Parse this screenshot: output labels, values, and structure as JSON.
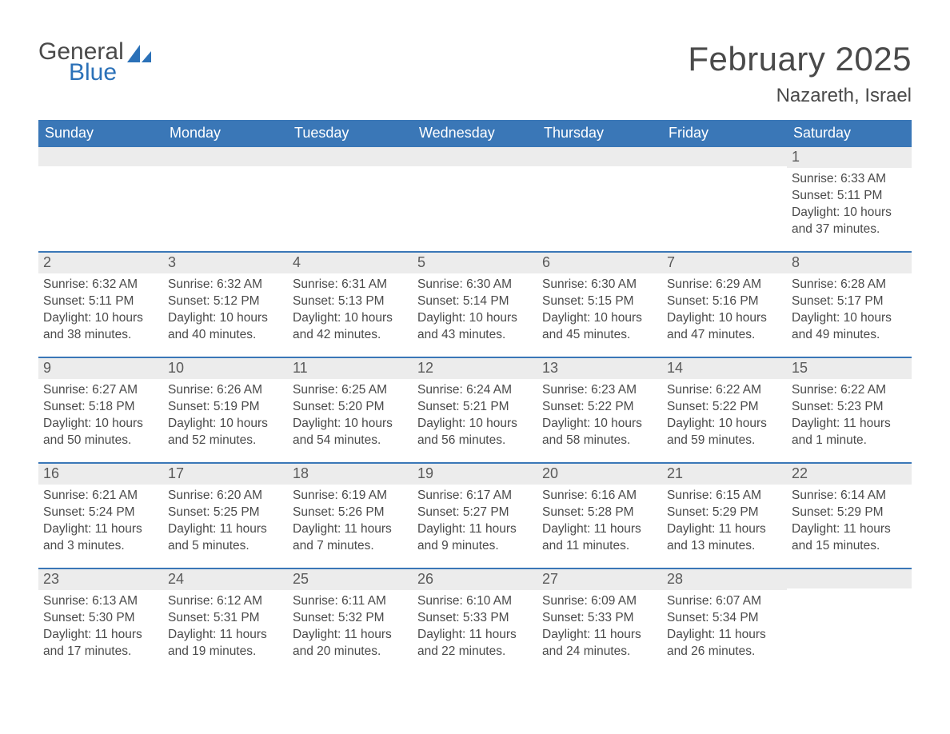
{
  "brand": {
    "word1": "General",
    "word2": "Blue",
    "sail_color": "#2b71b8"
  },
  "title": "February 2025",
  "location": "Nazareth, Israel",
  "header_bg": "#3a77b7",
  "header_fg": "#ffffff",
  "row_divider_color": "#3a77b7",
  "daynum_bg": "#ececec",
  "text_color": "#4a4a4a",
  "weekdays": [
    "Sunday",
    "Monday",
    "Tuesday",
    "Wednesday",
    "Thursday",
    "Friday",
    "Saturday"
  ],
  "weeks": [
    [
      null,
      null,
      null,
      null,
      null,
      null,
      {
        "n": "1",
        "sunrise": "Sunrise: 6:33 AM",
        "sunset": "Sunset: 5:11 PM",
        "daylight": "Daylight: 10 hours and 37 minutes."
      }
    ],
    [
      {
        "n": "2",
        "sunrise": "Sunrise: 6:32 AM",
        "sunset": "Sunset: 5:11 PM",
        "daylight": "Daylight: 10 hours and 38 minutes."
      },
      {
        "n": "3",
        "sunrise": "Sunrise: 6:32 AM",
        "sunset": "Sunset: 5:12 PM",
        "daylight": "Daylight: 10 hours and 40 minutes."
      },
      {
        "n": "4",
        "sunrise": "Sunrise: 6:31 AM",
        "sunset": "Sunset: 5:13 PM",
        "daylight": "Daylight: 10 hours and 42 minutes."
      },
      {
        "n": "5",
        "sunrise": "Sunrise: 6:30 AM",
        "sunset": "Sunset: 5:14 PM",
        "daylight": "Daylight: 10 hours and 43 minutes."
      },
      {
        "n": "6",
        "sunrise": "Sunrise: 6:30 AM",
        "sunset": "Sunset: 5:15 PM",
        "daylight": "Daylight: 10 hours and 45 minutes."
      },
      {
        "n": "7",
        "sunrise": "Sunrise: 6:29 AM",
        "sunset": "Sunset: 5:16 PM",
        "daylight": "Daylight: 10 hours and 47 minutes."
      },
      {
        "n": "8",
        "sunrise": "Sunrise: 6:28 AM",
        "sunset": "Sunset: 5:17 PM",
        "daylight": "Daylight: 10 hours and 49 minutes."
      }
    ],
    [
      {
        "n": "9",
        "sunrise": "Sunrise: 6:27 AM",
        "sunset": "Sunset: 5:18 PM",
        "daylight": "Daylight: 10 hours and 50 minutes."
      },
      {
        "n": "10",
        "sunrise": "Sunrise: 6:26 AM",
        "sunset": "Sunset: 5:19 PM",
        "daylight": "Daylight: 10 hours and 52 minutes."
      },
      {
        "n": "11",
        "sunrise": "Sunrise: 6:25 AM",
        "sunset": "Sunset: 5:20 PM",
        "daylight": "Daylight: 10 hours and 54 minutes."
      },
      {
        "n": "12",
        "sunrise": "Sunrise: 6:24 AM",
        "sunset": "Sunset: 5:21 PM",
        "daylight": "Daylight: 10 hours and 56 minutes."
      },
      {
        "n": "13",
        "sunrise": "Sunrise: 6:23 AM",
        "sunset": "Sunset: 5:22 PM",
        "daylight": "Daylight: 10 hours and 58 minutes."
      },
      {
        "n": "14",
        "sunrise": "Sunrise: 6:22 AM",
        "sunset": "Sunset: 5:22 PM",
        "daylight": "Daylight: 10 hours and 59 minutes."
      },
      {
        "n": "15",
        "sunrise": "Sunrise: 6:22 AM",
        "sunset": "Sunset: 5:23 PM",
        "daylight": "Daylight: 11 hours and 1 minute."
      }
    ],
    [
      {
        "n": "16",
        "sunrise": "Sunrise: 6:21 AM",
        "sunset": "Sunset: 5:24 PM",
        "daylight": "Daylight: 11 hours and 3 minutes."
      },
      {
        "n": "17",
        "sunrise": "Sunrise: 6:20 AM",
        "sunset": "Sunset: 5:25 PM",
        "daylight": "Daylight: 11 hours and 5 minutes."
      },
      {
        "n": "18",
        "sunrise": "Sunrise: 6:19 AM",
        "sunset": "Sunset: 5:26 PM",
        "daylight": "Daylight: 11 hours and 7 minutes."
      },
      {
        "n": "19",
        "sunrise": "Sunrise: 6:17 AM",
        "sunset": "Sunset: 5:27 PM",
        "daylight": "Daylight: 11 hours and 9 minutes."
      },
      {
        "n": "20",
        "sunrise": "Sunrise: 6:16 AM",
        "sunset": "Sunset: 5:28 PM",
        "daylight": "Daylight: 11 hours and 11 minutes."
      },
      {
        "n": "21",
        "sunrise": "Sunrise: 6:15 AM",
        "sunset": "Sunset: 5:29 PM",
        "daylight": "Daylight: 11 hours and 13 minutes."
      },
      {
        "n": "22",
        "sunrise": "Sunrise: 6:14 AM",
        "sunset": "Sunset: 5:29 PM",
        "daylight": "Daylight: 11 hours and 15 minutes."
      }
    ],
    [
      {
        "n": "23",
        "sunrise": "Sunrise: 6:13 AM",
        "sunset": "Sunset: 5:30 PM",
        "daylight": "Daylight: 11 hours and 17 minutes."
      },
      {
        "n": "24",
        "sunrise": "Sunrise: 6:12 AM",
        "sunset": "Sunset: 5:31 PM",
        "daylight": "Daylight: 11 hours and 19 minutes."
      },
      {
        "n": "25",
        "sunrise": "Sunrise: 6:11 AM",
        "sunset": "Sunset: 5:32 PM",
        "daylight": "Daylight: 11 hours and 20 minutes."
      },
      {
        "n": "26",
        "sunrise": "Sunrise: 6:10 AM",
        "sunset": "Sunset: 5:33 PM",
        "daylight": "Daylight: 11 hours and 22 minutes."
      },
      {
        "n": "27",
        "sunrise": "Sunrise: 6:09 AM",
        "sunset": "Sunset: 5:33 PM",
        "daylight": "Daylight: 11 hours and 24 minutes."
      },
      {
        "n": "28",
        "sunrise": "Sunrise: 6:07 AM",
        "sunset": "Sunset: 5:34 PM",
        "daylight": "Daylight: 11 hours and 26 minutes."
      },
      null
    ]
  ]
}
